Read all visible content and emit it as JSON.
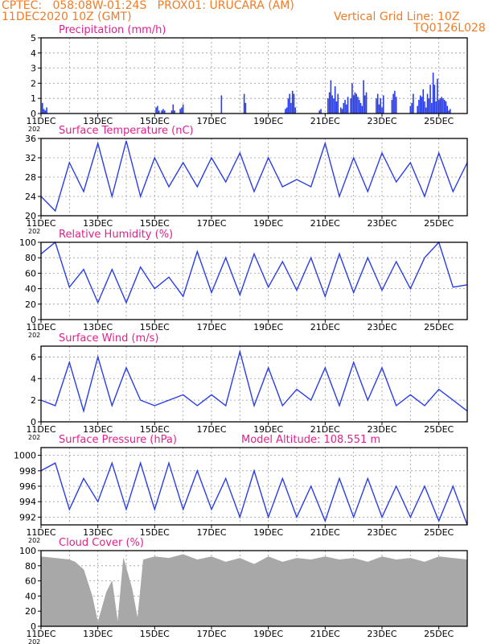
{
  "header": {
    "line1_left": "CPTEC:   058:08W-01:24S   PROX01: URUCARA (AM)",
    "line2_left": "11DEC2020 10Z (GMT)",
    "line2_right": "Vertical Grid Line: 10Z",
    "line3_right": "TQ0126L028"
  },
  "colors": {
    "header": "#f07c28",
    "title": "#e0208c",
    "series": "#2a3ee8",
    "cloud": "#a8a8a8",
    "grid": "#9a9a9a"
  },
  "x_axis": {
    "ticks": [
      "11DEC",
      "13DEC",
      "15DEC",
      "17DEC",
      "19DEC",
      "21DEC",
      "23DEC",
      "25DEC"
    ],
    "year_fragment": "202"
  },
  "chart_data": [
    {
      "type": "bar",
      "title": "Precipitation (mm/h)",
      "ylim": [
        0,
        5
      ],
      "yticks": [
        "0",
        "1",
        "2",
        "3",
        "4",
        "5"
      ],
      "day_range": [
        0,
        15
      ],
      "x": [
        0.05,
        0.1,
        0.15,
        0.2,
        4.05,
        4.1,
        4.15,
        4.25,
        4.3,
        4.35,
        4.6,
        4.65,
        4.7,
        4.9,
        4.95,
        5.0,
        6.35,
        7.15,
        7.2,
        8.6,
        8.65,
        8.7,
        8.75,
        8.8,
        8.85,
        8.9,
        8.95,
        9.8,
        9.85,
        10.1,
        10.15,
        10.2,
        10.25,
        10.3,
        10.35,
        10.4,
        10.45,
        10.55,
        10.6,
        10.65,
        10.7,
        10.75,
        10.8,
        10.9,
        10.95,
        11.0,
        11.05,
        11.1,
        11.15,
        11.2,
        11.25,
        11.3,
        11.35,
        11.4,
        11.45,
        11.8,
        11.85,
        11.9,
        11.95,
        12.0,
        12.05,
        12.35,
        12.4,
        12.45,
        12.5,
        13.0,
        13.05,
        13.1,
        13.25,
        13.3,
        13.35,
        13.4,
        13.45,
        13.5,
        13.55,
        13.6,
        13.65,
        13.7,
        13.75,
        13.8,
        13.85,
        13.9,
        13.95,
        14.0,
        14.05,
        14.1,
        14.15,
        14.2,
        14.25,
        14.3,
        14.35,
        14.4
      ],
      "values": [
        0.7,
        0.3,
        0.2,
        0.4,
        0.4,
        0.5,
        0.2,
        0.2,
        0.3,
        0.2,
        0.2,
        0.6,
        0.2,
        0.3,
        0.4,
        0.6,
        1.2,
        1.3,
        0.7,
        0.3,
        0.4,
        1.0,
        1.3,
        0.7,
        1.5,
        1.3,
        0.4,
        0.2,
        0.3,
        1.0,
        1.4,
        2.2,
        1.2,
        1.0,
        1.8,
        0.8,
        1.3,
        0.4,
        0.3,
        0.7,
        0.9,
        0.6,
        1.1,
        1.0,
        2.0,
        1.2,
        1.4,
        1.3,
        1.1,
        0.9,
        0.7,
        0.5,
        2.2,
        1.2,
        1.4,
        1.0,
        1.3,
        0.6,
        1.0,
        0.4,
        1.2,
        0.9,
        1.3,
        1.5,
        1.1,
        0.5,
        0.7,
        1.3,
        0.5,
        0.9,
        1.2,
        1.1,
        1.6,
        0.8,
        0.4,
        1.3,
        1.0,
        1.9,
        0.7,
        2.7,
        1.9,
        0.8,
        2.3,
        0.9,
        1.0,
        1.1,
        1.0,
        0.9,
        0.8,
        0.5,
        0.2,
        0.3
      ]
    },
    {
      "type": "line",
      "title": "Surface Temperature (nC)",
      "ylim": [
        20,
        36
      ],
      "yticks": [
        "20",
        "24",
        "28",
        "32",
        "36"
      ],
      "day_range": [
        0,
        15
      ],
      "x": [
        0,
        0.5,
        1,
        1.5,
        2,
        2.5,
        3,
        3.5,
        4,
        4.5,
        5,
        5.5,
        6,
        6.5,
        7,
        7.5,
        8,
        8.5,
        9,
        9.5,
        10,
        10.5,
        11,
        11.5,
        12,
        12.5,
        13,
        13.5,
        14,
        14.5,
        15
      ],
      "values": [
        24,
        21,
        31,
        25,
        35,
        24,
        35.5,
        24,
        32,
        26,
        31,
        26,
        32,
        27,
        33,
        25,
        32,
        26,
        27.5,
        26,
        35,
        24,
        32,
        25,
        33,
        27,
        31,
        24,
        33,
        25,
        31
      ]
    },
    {
      "type": "line",
      "title": "Relative Humidity (%)",
      "ylim": [
        0,
        100
      ],
      "yticks": [
        "0",
        "20",
        "40",
        "60",
        "80",
        "100"
      ],
      "day_range": [
        0,
        15
      ],
      "x": [
        0,
        0.5,
        1,
        1.5,
        2,
        2.5,
        3,
        3.5,
        4,
        4.5,
        5,
        5.5,
        6,
        6.5,
        7,
        7.5,
        8,
        8.5,
        9,
        9.5,
        10,
        10.5,
        11,
        11.5,
        12,
        12.5,
        13,
        13.5,
        14,
        14.5,
        15
      ],
      "values": [
        85,
        100,
        42,
        65,
        22,
        65,
        22,
        68,
        40,
        55,
        30,
        88,
        35,
        80,
        32,
        85,
        42,
        75,
        38,
        80,
        30,
        85,
        35,
        80,
        38,
        75,
        40,
        80,
        100,
        42,
        45
      ]
    },
    {
      "type": "line",
      "title": "Surface Wind (m/s)",
      "ylim": [
        0,
        7
      ],
      "yticks": [
        "0",
        "2",
        "4",
        "6"
      ],
      "day_range": [
        0,
        15
      ],
      "x": [
        0,
        0.5,
        1,
        1.5,
        2,
        2.5,
        3,
        3.5,
        4,
        4.5,
        5,
        5.5,
        6,
        6.5,
        7,
        7.5,
        8,
        8.5,
        9,
        9.5,
        10,
        10.5,
        11,
        11.5,
        12,
        12.5,
        13,
        13.5,
        14,
        14.5,
        15
      ],
      "values": [
        2,
        1.5,
        5.5,
        1,
        6,
        1.5,
        5,
        2,
        1.5,
        2,
        2.5,
        1.5,
        2.5,
        1.5,
        6.5,
        1.5,
        5,
        1.5,
        3,
        2,
        5,
        1.5,
        5.5,
        2,
        5,
        1.5,
        2.5,
        1.5,
        3,
        2,
        1
      ]
    },
    {
      "type": "line",
      "title": "Surface Pressure (hPa)",
      "annotation": "Model Altitude: 108.551 m",
      "ylim": [
        991,
        1001
      ],
      "yticks": [
        "992",
        "994",
        "996",
        "998",
        "1000"
      ],
      "day_range": [
        0,
        15
      ],
      "x": [
        0,
        0.5,
        1,
        1.5,
        2,
        2.5,
        3,
        3.5,
        4,
        4.5,
        5,
        5.5,
        6,
        6.5,
        7,
        7.5,
        8,
        8.5,
        9,
        9.5,
        10,
        10.5,
        11,
        11.5,
        12,
        12.5,
        13,
        13.5,
        14,
        14.5,
        15
      ],
      "values": [
        998,
        999,
        993,
        997,
        994,
        999,
        993,
        999,
        993,
        999,
        993,
        998,
        993,
        997,
        992,
        998,
        992,
        997,
        992,
        996,
        991.5,
        997,
        992,
        997,
        992,
        996,
        992,
        996,
        991.5,
        996,
        991
      ]
    },
    {
      "type": "area",
      "title": "Cloud Cover (%)",
      "ylim": [
        0,
        100
      ],
      "yticks": [
        "0",
        "20",
        "40",
        "60",
        "80",
        "100"
      ],
      "day_range": [
        0,
        15
      ],
      "x": [
        0,
        0.5,
        1,
        1.2,
        1.5,
        1.8,
        2,
        2.3,
        2.5,
        2.7,
        2.9,
        3.2,
        3.4,
        3.6,
        4,
        4.5,
        5,
        5.5,
        6,
        6.5,
        7,
        7.5,
        8,
        8.5,
        9,
        9.5,
        10,
        10.5,
        11,
        11.5,
        12,
        12.5,
        13,
        13.5,
        14,
        14.5,
        15
      ],
      "values": [
        92,
        90,
        88,
        85,
        75,
        40,
        5,
        45,
        60,
        5,
        90,
        50,
        10,
        88,
        92,
        90,
        95,
        88,
        92,
        85,
        90,
        82,
        92,
        85,
        90,
        88,
        92,
        88,
        90,
        85,
        92,
        88,
        90,
        85,
        92,
        90,
        88
      ]
    }
  ]
}
